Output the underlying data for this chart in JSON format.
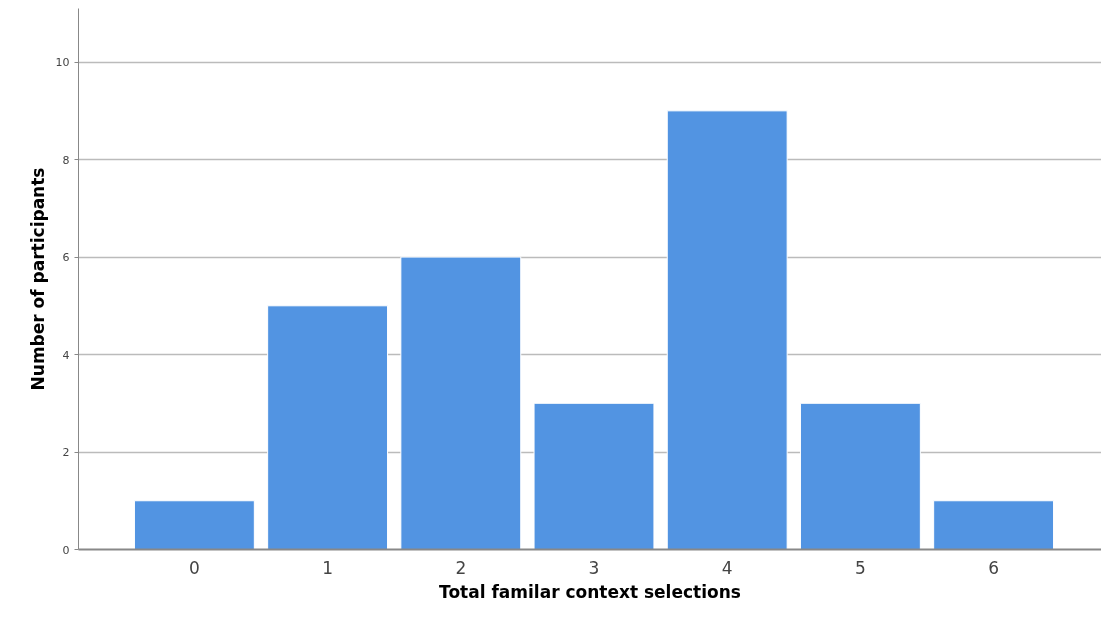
{
  "chart_data": {
    "type": "bar",
    "xlabel": "Total familar context selections",
    "ylabel": "Number of participants",
    "categories": [
      "0",
      "1",
      "2",
      "3",
      "4",
      "5",
      "6"
    ],
    "values": [
      1,
      5,
      6,
      3,
      9,
      3,
      1
    ],
    "color": "#5294e2",
    "ylim": [
      0,
      11.1
    ],
    "yticks": [
      0,
      2,
      4,
      6,
      8,
      10
    ],
    "grid": "y"
  }
}
